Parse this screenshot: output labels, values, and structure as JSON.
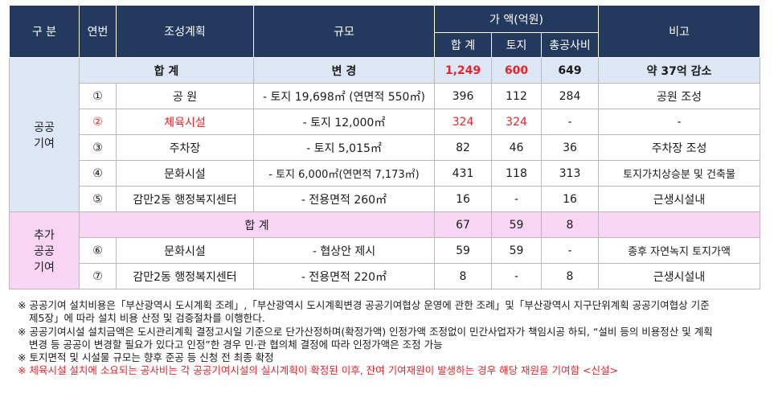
{
  "header": {
    "gubun": "구 분",
    "yeonbeon": "연번",
    "plan": "조성계획",
    "scale": "규모",
    "amount": "가 액(억원)",
    "sum": "합 계",
    "land": "토지",
    "construction": "총공사비",
    "remarks": "비고"
  },
  "section1": {
    "label": "공공\n기여",
    "total": {
      "label": "합 계",
      "scale": "변 경",
      "sum": "1,249",
      "land": "600",
      "construction": "649",
      "remarks": "약 37억 감소"
    },
    "rows": [
      {
        "no": "①",
        "plan": "공 원",
        "scale": "- 토지 19,698㎡ (연면적 550㎡)",
        "sum": "396",
        "land": "112",
        "construction": "284",
        "remarks": "공원 조성"
      },
      {
        "no": "②",
        "plan": "체육시설",
        "scale": "- 토지 12,000㎡",
        "sum": "324",
        "land": "324",
        "construction": "-",
        "remarks": "-"
      },
      {
        "no": "③",
        "plan": "주차장",
        "scale": "- 토지 5,015㎡",
        "sum": "82",
        "land": "46",
        "construction": "36",
        "remarks": "주차장 조성"
      },
      {
        "no": "④",
        "plan": "문화시설",
        "scale": "- 토지 6,000㎡(연면적 7,173㎡)",
        "sum": "431",
        "land": "118",
        "construction": "313",
        "remarks": "토지가치상승분 및 건축물"
      },
      {
        "no": "⑤",
        "plan": "감만2동 행정복지센터",
        "scale": "- 전용면적 260㎡",
        "sum": "16",
        "land": "-",
        "construction": "16",
        "remarks": "근생시설내"
      }
    ]
  },
  "section2": {
    "label": "추가\n공공\n기여",
    "total": {
      "label": "합 계",
      "sum": "67",
      "land": "59",
      "construction": "8",
      "remarks": ""
    },
    "rows": [
      {
        "no": "⑥",
        "plan": "문화시설",
        "scale": "- 협상안 제시",
        "sum": "59",
        "land": "59",
        "construction": "-",
        "remarks": "종후 자연녹지 토지가액"
      },
      {
        "no": "⑦",
        "plan": "감만2동 행정복지센터",
        "scale": "- 전용면적 220㎡",
        "sum": "8",
        "land": "-",
        "construction": "8",
        "remarks": "근생시설내"
      }
    ]
  },
  "notes": {
    "n1a": "※ 공공기여 설치비용은「부산광역시 도시계획 조례」,「부산광역시 도시계획변경 공공기여협상 운영에 관한 조례」및「부산광역시 지구단위계획 공공기여협상 기준",
    "n1b": "제5장」에 따라 설치 비용 산정 및 검증절차를 이행한다.",
    "n2a": "※ 공공기여시설 설치금액은 도시관리계획 결정고시일 기준으로 단가산정하며(확정가액) 인정가액 조정없이 민간사업자가 책임시공 하되, “설비 등의 비용정산 및 계획",
    "n2b": "변경 등 공공이 변경할 필요가 있다고 인정”한 경우 민·관 협의체 결정에 따라 인정가액은 조정 가능",
    "n3": "※ 토지면적 및 시설물 규모는 향후 준공 등 신청 전 최종 확정",
    "n4": "※ 체육시설 설치에 소요되는 공사비는 각 공공기여시설의 실시계획이 확정된 이후, 잔여 기여재원이 발생하는 경우 해당 재원을 기여함 <신설>"
  },
  "colors": {
    "header": "#233a5e",
    "section1": "#dde6f4",
    "section2": "#f8d5f4",
    "highlight": "#e4252b"
  }
}
